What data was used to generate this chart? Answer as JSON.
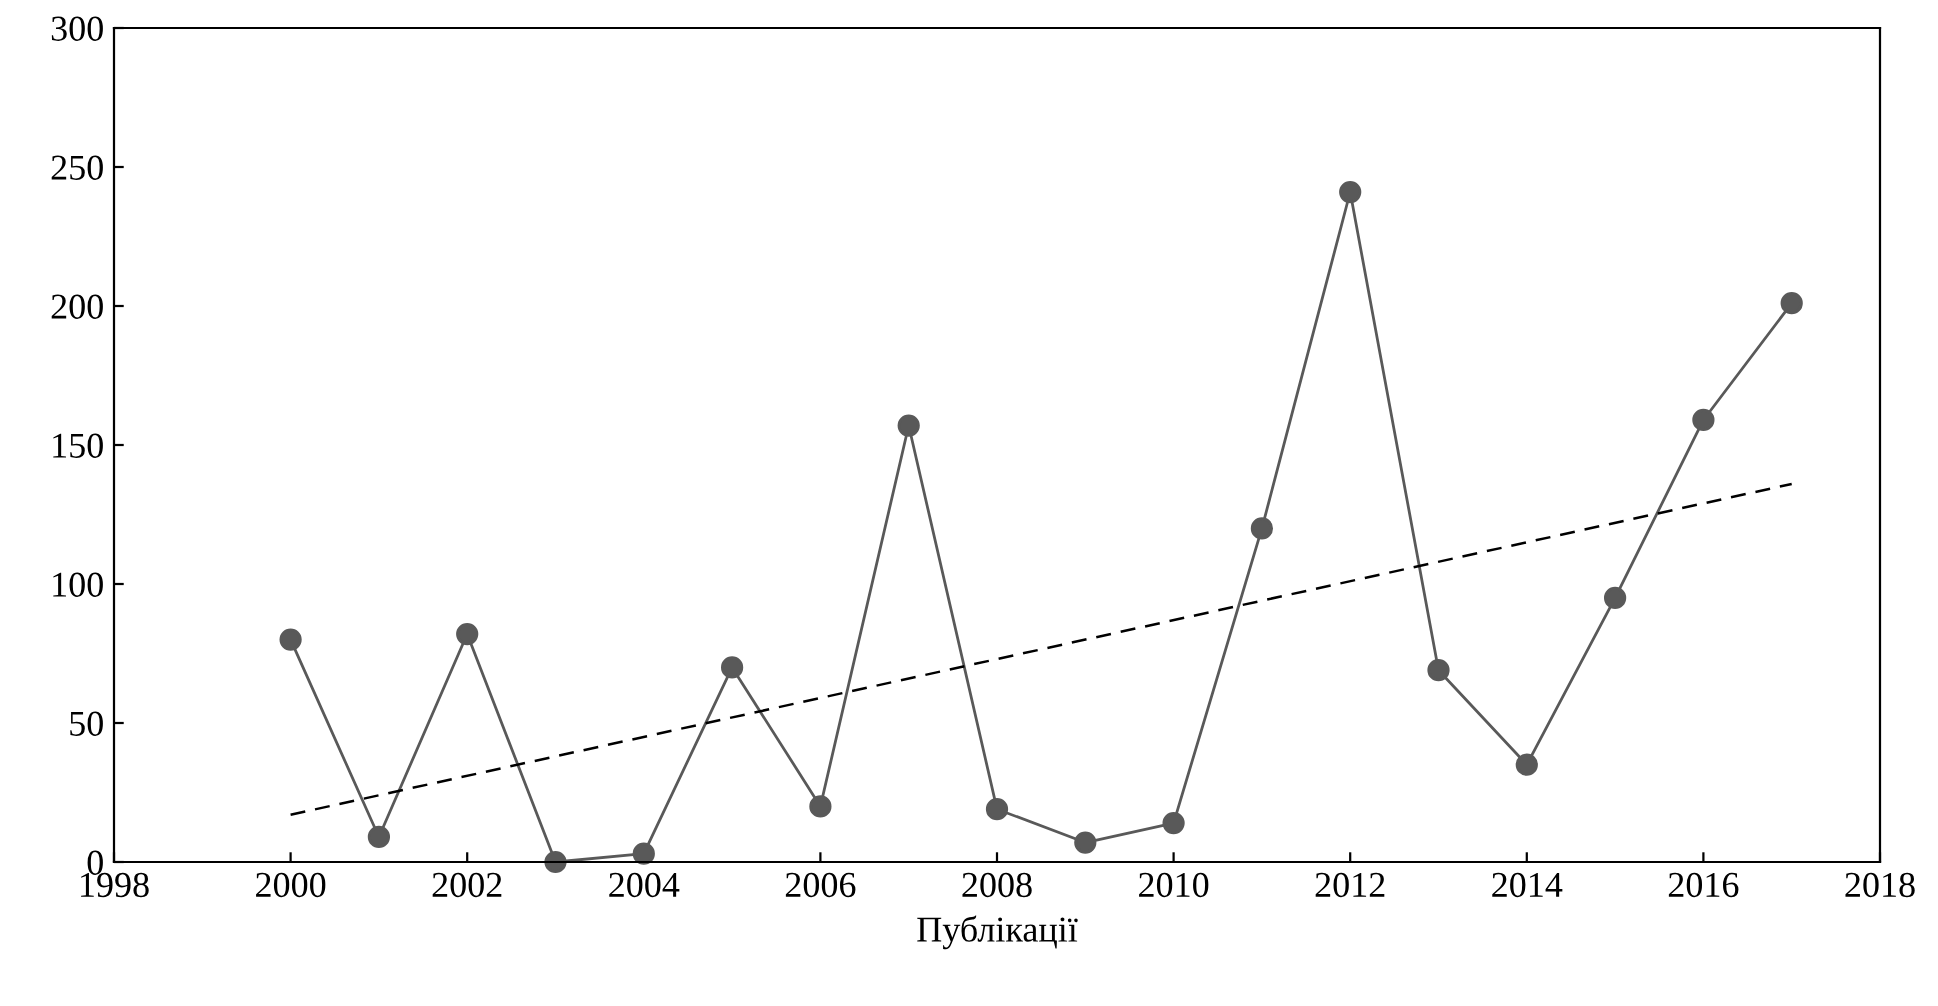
{
  "chart_data": {
    "type": "line",
    "xlabel": "Публікації",
    "x": [
      2000,
      2001,
      2002,
      2003,
      2004,
      2005,
      2006,
      2007,
      2008,
      2009,
      2010,
      2011,
      2012,
      2013,
      2014,
      2015,
      2016,
      2017
    ],
    "series": [
      {
        "color": "#595959",
        "marker": "circle",
        "line_style": "solid",
        "values": [
          80,
          9,
          82,
          0,
          3,
          70,
          20,
          157,
          19,
          7,
          14,
          120,
          241,
          69,
          35,
          95,
          159,
          201
        ]
      },
      {
        "type": "line",
        "color": "#000000",
        "marker": "none",
        "line_style": "dashed",
        "x": [
          2000,
          2017
        ],
        "values": [
          17,
          136
        ]
      }
    ],
    "xlim": [
      1998,
      2018
    ],
    "xticks": [
      1998,
      2000,
      2002,
      2004,
      2006,
      2008,
      2010,
      2012,
      2014,
      2016,
      2018
    ],
    "ylim": [
      0,
      300
    ],
    "yticks": [
      0,
      50,
      100,
      150,
      200,
      250,
      300
    ],
    "grid": false,
    "legend": false
  }
}
